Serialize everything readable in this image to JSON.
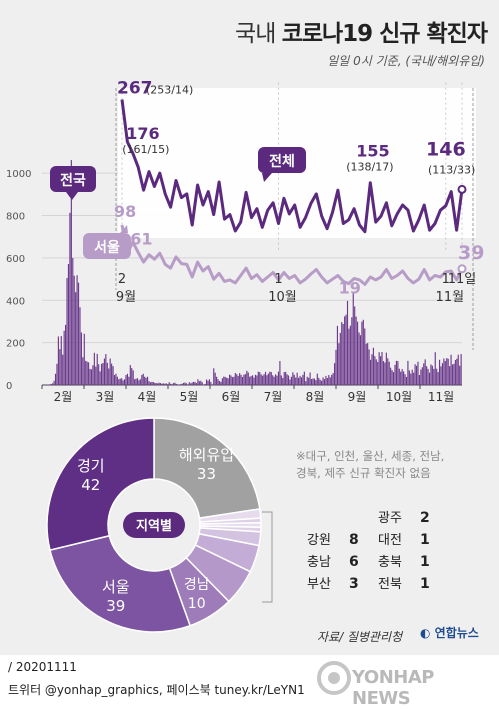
{
  "header": {
    "title_light": "국내",
    "title_bold": "코로나19 신규 확진자",
    "subtitle": "일일 0시 기준, (국내/해외유입)"
  },
  "chart_data": [
    {
      "type": "line",
      "name": "detail",
      "series": [
        {
          "name": "전체",
          "color": "#5b2a7e",
          "values": [
            267,
            210,
            195,
            176,
            145,
            170,
            150,
            168,
            140,
            122,
            158,
            135,
            140,
            98,
            152,
            125,
            143,
            112,
            156,
            106,
            112,
            90,
            102,
            142,
            108,
            120,
            95,
            118,
            128,
            100,
            134,
            113,
            125,
            95,
            108,
            127,
            140,
            110,
            93,
            115,
            145,
            100,
            105,
            120,
            98,
            89,
            155,
            102,
            110,
            128,
            97,
            113,
            125,
            118,
            90,
            105,
            125,
            91,
            100,
            118,
            124,
            143,
            91,
            146
          ]
        },
        {
          "name": "서울",
          "color": "#b79cc8",
          "values": [
            98,
            60,
            75,
            61,
            48,
            58,
            52,
            60,
            45,
            40,
            55,
            46,
            45,
            28,
            48,
            36,
            42,
            25,
            33,
            22,
            24,
            20,
            30,
            40,
            26,
            31,
            22,
            28,
            34,
            24,
            34,
            26,
            30,
            20,
            25,
            32,
            38,
            28,
            20,
            25,
            30,
            22,
            19,
            26,
            24,
            18,
            28,
            24,
            28,
            38,
            26,
            30,
            36,
            26,
            20,
            25,
            38,
            24,
            30,
            28,
            35,
            36,
            24,
            39
          ]
        }
      ],
      "labels": {
        "total_peak": "267",
        "total_peak_sub": "(253/14)",
        "total_2": "176",
        "total_2_sub": "(161/15)",
        "total_3": "155",
        "total_3_sub": "(138/17)",
        "total_last": "146",
        "total_last_sub": "(113/33)",
        "seoul_peak": "98",
        "seoul_2": "61",
        "seoul_3": "19",
        "seoul_last": "39",
        "tag_total": "전체",
        "tag_seoul": "서울"
      },
      "x_ticks": [
        {
          "day": "2",
          "month": "9월"
        },
        {
          "day": "1",
          "month": "10월"
        },
        {
          "day": "1",
          "month": "11월"
        },
        {
          "day": "11일",
          "month": ""
        }
      ]
    },
    {
      "type": "bar",
      "name": "national",
      "series_name": "전국",
      "color": "#6b3a8c",
      "ylim": [
        0,
        1100
      ],
      "y_ticks": [
        0,
        200,
        400,
        600,
        800,
        1000
      ],
      "x_labels": [
        "2월",
        "3월",
        "4월",
        "5월",
        "6월",
        "7월",
        "8월",
        "9월",
        "10월",
        "11월"
      ],
      "values": [
        1,
        1,
        1,
        2,
        2,
        3,
        5,
        8,
        20,
        53,
        100,
        229,
        169,
        231,
        143,
        256,
        284,
        505,
        571,
        813,
        1062,
        600,
        516,
        438,
        518,
        483,
        367,
        248,
        131,
        242,
        114,
        110,
        107,
        76,
        74,
        93,
        152,
        87,
        147,
        98,
        64,
        100,
        104,
        125,
        146,
        105,
        78,
        125,
        101,
        89,
        47,
        53,
        39,
        27,
        30,
        32,
        22,
        27,
        47,
        53,
        39,
        94,
        80,
        69,
        27,
        30,
        32,
        22,
        27,
        47,
        53,
        39,
        34,
        39,
        18,
        13,
        15,
        14,
        10,
        9,
        8,
        11,
        9,
        6,
        8,
        6,
        8,
        4,
        13,
        6,
        4,
        9,
        11,
        5,
        3,
        2,
        4,
        6,
        10,
        12,
        8,
        3,
        13,
        8,
        12,
        15,
        14,
        9,
        27,
        18,
        20,
        13,
        2,
        5,
        26,
        20,
        27,
        15,
        3,
        79,
        58,
        39,
        27,
        19,
        15,
        32,
        40,
        38,
        34,
        32,
        49,
        45,
        37,
        39,
        57,
        51,
        43,
        56,
        48,
        38,
        49,
        51,
        67,
        59,
        39,
        42,
        46,
        35,
        48,
        45,
        63,
        61,
        50,
        44,
        51,
        62,
        46,
        54,
        63,
        61,
        46,
        39,
        50,
        44,
        63,
        113,
        45,
        33,
        61,
        62,
        50,
        45,
        26,
        39,
        60,
        48,
        35,
        58,
        34,
        43,
        36,
        48,
        63,
        18,
        39,
        34,
        59,
        28,
        31,
        30,
        23,
        54,
        34,
        25,
        20,
        36,
        28,
        43,
        33,
        47,
        36,
        48,
        56,
        103,
        166,
        279,
        197,
        246,
        297,
        288,
        324,
        332,
        397,
        266,
        280,
        320,
        441,
        371,
        323,
        299,
        248,
        235,
        299,
        308,
        267,
        195,
        198,
        168,
        119,
        145,
        176,
        136,
        121,
        109,
        155,
        136,
        156,
        113,
        106,
        153,
        126,
        110,
        82,
        70,
        61,
        95,
        114,
        113,
        77,
        63,
        75,
        64,
        51,
        38,
        114,
        69,
        54,
        72,
        58,
        98,
        91,
        110,
        47,
        73,
        84,
        102,
        121,
        89,
        76,
        58,
        97,
        91,
        76,
        155,
        77,
        61,
        119,
        88,
        103,
        125,
        113,
        127,
        124,
        89,
        143,
        97,
        100,
        118,
        124,
        143,
        91,
        146
      ]
    },
    {
      "type": "pie",
      "name": "regional",
      "center_label": "지역별",
      "slices": [
        {
          "label": "해외유입",
          "value": 33,
          "color": "#a1a1a1"
        },
        {
          "label": "광주",
          "value": 2,
          "color": "#e6dcee"
        },
        {
          "label": "대전",
          "value": 1,
          "color": "#ddd1e7"
        },
        {
          "label": "충북",
          "value": 1,
          "color": "#e6dcee"
        },
        {
          "label": "전북",
          "value": 1,
          "color": "#ddd1e7"
        },
        {
          "label": "부산",
          "value": 3,
          "color": "#d3c3e0"
        },
        {
          "label": "충남",
          "value": 6,
          "color": "#c3add6"
        },
        {
          "label": "강원",
          "value": 8,
          "color": "#b498ca"
        },
        {
          "label": "경남",
          "value": 10,
          "color": "#9e7cba"
        },
        {
          "label": "서울",
          "value": 39,
          "color": "#7c54a1"
        },
        {
          "label": "경기",
          "value": 42,
          "color": "#5f2e85"
        }
      ],
      "legend": [
        {
          "label": "광주",
          "value": "2"
        },
        {
          "label": "강원",
          "value": "8"
        },
        {
          "label": "대전",
          "value": "1"
        },
        {
          "label": "충남",
          "value": "6"
        },
        {
          "label": "충북",
          "value": "1"
        },
        {
          "label": "부산",
          "value": "3"
        },
        {
          "label": "전북",
          "value": "1"
        }
      ],
      "note_line1": "※대구, 인천, 울산, 세종, 전남,",
      "note_line2": "경북, 제주 신규 확진자 없음"
    }
  ],
  "footer": {
    "source": "자료/ 질병관리청",
    "logo": "연합뉴스",
    "date": "/ 20201111",
    "sns": "트위터 @yonhap_graphics, 페이스북 tuney.kr/LeYN1",
    "watermark": "YONHAP NEWS"
  }
}
